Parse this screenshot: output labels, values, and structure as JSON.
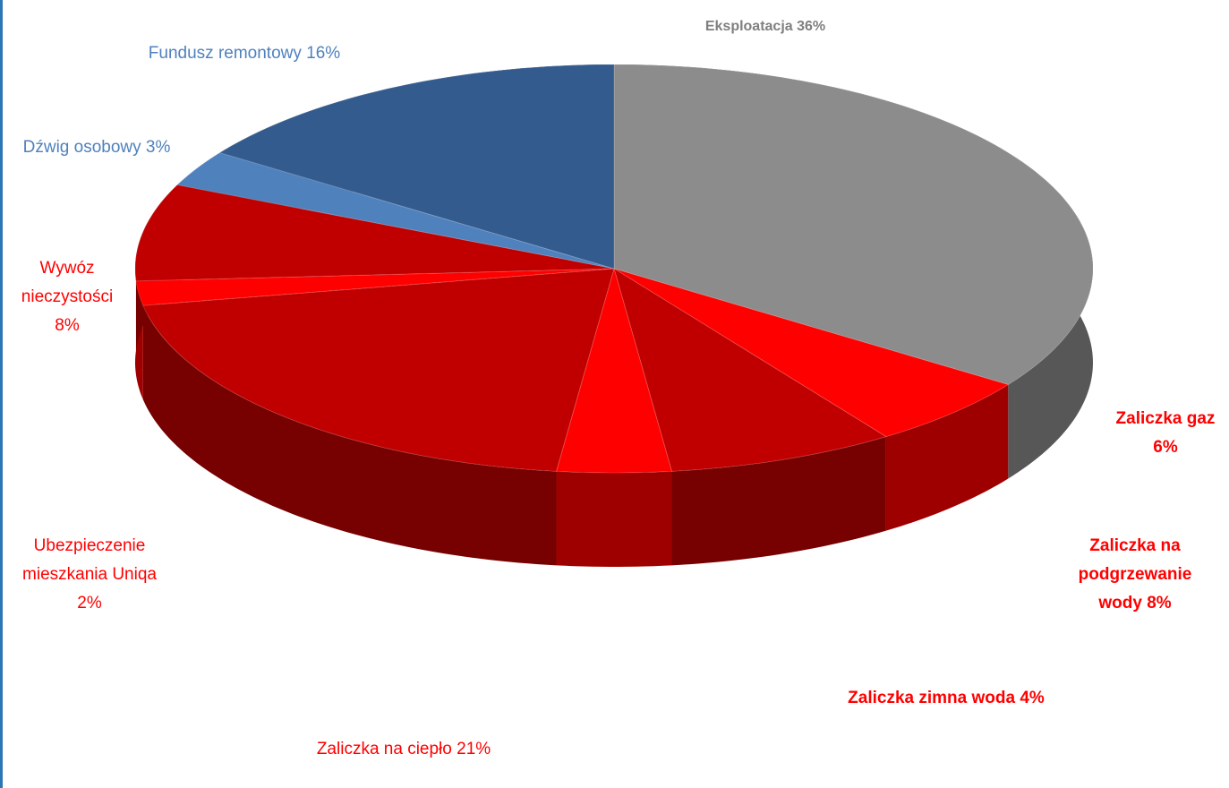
{
  "chart_data": {
    "type": "pie3d",
    "categories": [
      "Eksploatacja",
      "Zaliczka gaz",
      "Zaliczka na podgrzewanie wody",
      "Zaliczka zimna woda",
      "Zaliczka na ciepło",
      "Ubezpieczenie mieszkania Uniqa",
      "Wywóz nieczystości",
      "Dźwig osobowy",
      "Fundusz remontowy"
    ],
    "values": [
      36,
      6,
      8,
      4,
      21,
      2,
      8,
      3,
      16
    ],
    "value_labels": [
      "36%",
      "6%",
      "8%",
      "4%",
      "21%",
      "2%",
      "8%",
      "3%",
      "16%"
    ],
    "colors": [
      "#8c8c8c",
      "#ff0000",
      "#c00000",
      "#ff0000",
      "#c00000",
      "#ff0000",
      "#c00000",
      "#4f81bd",
      "#335b8e"
    ],
    "label_colors": [
      "#7f7f7f",
      "#ff0000",
      "#ff0000",
      "#ff0000",
      "#ff0000",
      "#ff0000",
      "#ff0000",
      "#4f81bd",
      "#4f81bd"
    ]
  }
}
